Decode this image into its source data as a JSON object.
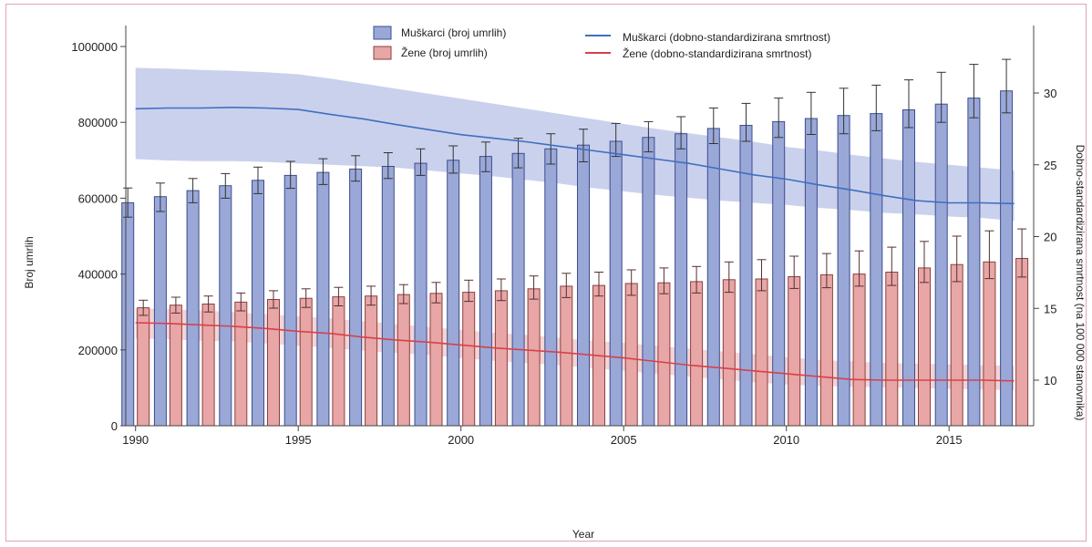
{
  "colors": {
    "men_bar": "#9aa8d8",
    "men_bar_stroke": "#3d4c8e",
    "women_bar": "#e8a6a6",
    "women_bar_stroke": "#8a4040",
    "men_line": "#3f6fbf",
    "women_line": "#d8404a",
    "men_band": "#c1c9ea",
    "women_band": "#f2cccc",
    "frame": "#e4a3b6"
  },
  "chart_data": {
    "type": "bar",
    "xlabel": "Year",
    "ylabel": "Broj umrlih",
    "y2label": "Dobno-standardizirana smrtnost (na 100 000 stanovnika)",
    "ylim": [
      0,
      1000000
    ],
    "y2lim": [
      7.7,
      33.5
    ],
    "xlim": [
      1989.7,
      2017.6
    ],
    "x_ticks": [
      1990,
      1995,
      2000,
      2005,
      2010,
      2015
    ],
    "x_tick_labels": [
      "1990",
      "1995",
      "2000",
      "2005",
      "2010",
      "2015"
    ],
    "y_ticks": [
      0,
      200000,
      400000,
      600000,
      800000,
      1000000
    ],
    "y_tick_labels": [
      "0",
      "200000",
      "400000",
      "600000",
      "800000",
      "1000000"
    ],
    "y2_ticks": [
      10,
      15,
      20,
      25,
      30
    ],
    "y2_tick_labels": [
      "10",
      "15",
      "20",
      "25",
      "30"
    ],
    "legend": {
      "placement": "top",
      "entries": [
        "Muškarci (broj umrlih)",
        "Žene (broj umrlih)",
        "Muškarci (dobno-standardizirana smrtnost)",
        "Žene (dobno-standardizirana smrtnost)"
      ]
    },
    "years": [
      1990,
      1991,
      1992,
      1993,
      1994,
      1995,
      1996,
      1997,
      1998,
      1999,
      2000,
      2001,
      2002,
      2003,
      2004,
      2005,
      2006,
      2007,
      2008,
      2009,
      2010,
      2011,
      2012,
      2013,
      2014,
      2015,
      2016,
      2017
    ],
    "series": [
      {
        "name": "Muškarci (broj umrlih)",
        "type": "bar",
        "values": [
          588000,
          604000,
          620000,
          633000,
          647000,
          660000,
          668000,
          677000,
          684000,
          692000,
          700000,
          710000,
          718000,
          730000,
          740000,
          750000,
          760000,
          770000,
          784000,
          792000,
          802000,
          810000,
          818000,
          823000,
          833000,
          848000,
          864000,
          883000
        ],
        "lower": [
          550000,
          565000,
          588000,
          600000,
          612000,
          626000,
          636000,
          645000,
          652000,
          660000,
          666000,
          670000,
          680000,
          690000,
          696000,
          710000,
          722000,
          730000,
          744000,
          750000,
          760000,
          768000,
          770000,
          778000,
          786000,
          800000,
          812000,
          825000
        ],
        "upper": [
          627000,
          640000,
          652000,
          665000,
          682000,
          697000,
          704000,
          712000,
          720000,
          730000,
          738000,
          748000,
          758000,
          770000,
          782000,
          797000,
          802000,
          815000,
          838000,
          850000,
          864000,
          879000,
          890000,
          898000,
          912000,
          932000,
          953000,
          966000
        ]
      },
      {
        "name": "Žene (broj umrlih)",
        "type": "bar",
        "values": [
          311000,
          318000,
          321000,
          326000,
          333000,
          336000,
          340000,
          342000,
          346000,
          349000,
          352000,
          356000,
          361000,
          368000,
          370000,
          375000,
          377000,
          380000,
          385000,
          387000,
          393000,
          398000,
          400000,
          405000,
          416000,
          425000,
          432000,
          441000
        ],
        "lower": [
          291000,
          297000,
          300000,
          303000,
          310000,
          312000,
          316000,
          318000,
          322000,
          324000,
          328000,
          330000,
          334000,
          338000,
          342000,
          344000,
          348000,
          350000,
          352000,
          356000,
          362000,
          364000,
          368000,
          370000,
          378000,
          380000,
          388000,
          392000
        ],
        "upper": [
          331000,
          339000,
          342000,
          350000,
          356000,
          361000,
          365000,
          368000,
          372000,
          378000,
          384000,
          387000,
          395000,
          402000,
          405000,
          411000,
          416000,
          420000,
          432000,
          438000,
          447000,
          454000,
          461000,
          471000,
          486000,
          500000,
          514000,
          519000
        ]
      },
      {
        "name": "Muškarci (dobno-standardizirana smrtnost)",
        "type": "line",
        "values": [
          28.9,
          28.95,
          28.95,
          29.0,
          28.95,
          28.85,
          28.5,
          28.2,
          27.8,
          27.45,
          27.1,
          26.85,
          26.6,
          26.3,
          26.0,
          25.7,
          25.4,
          25.1,
          24.7,
          24.3,
          24.0,
          23.6,
          23.25,
          22.85,
          22.5,
          22.35,
          22.35,
          22.3
        ],
        "lower": [
          25.4,
          25.3,
          25.25,
          25.25,
          25.2,
          25.1,
          25.0,
          24.9,
          24.8,
          24.6,
          24.4,
          24.2,
          23.95,
          23.7,
          23.4,
          23.15,
          22.9,
          22.7,
          22.5,
          22.35,
          22.2,
          22.0,
          21.85,
          21.65,
          21.55,
          21.4,
          21.3,
          21.1
        ],
        "upper": [
          31.75,
          31.7,
          31.6,
          31.55,
          31.45,
          31.3,
          31.0,
          30.65,
          30.3,
          29.95,
          29.6,
          29.25,
          28.9,
          28.55,
          28.2,
          27.85,
          27.5,
          27.2,
          26.9,
          26.6,
          26.25,
          26.0,
          25.7,
          25.45,
          25.2,
          25.0,
          24.8,
          24.6
        ]
      },
      {
        "name": "Žene (dobno-standardizirana smrtnost)",
        "type": "line",
        "values": [
          14.0,
          13.95,
          13.85,
          13.75,
          13.6,
          13.4,
          13.25,
          13.0,
          12.8,
          12.65,
          12.45,
          12.25,
          12.1,
          11.95,
          11.75,
          11.55,
          11.3,
          11.05,
          10.85,
          10.65,
          10.45,
          10.25,
          10.05,
          10.0,
          10.0,
          10.0,
          10.0,
          9.95
        ],
        "lower": [
          12.9,
          12.85,
          12.75,
          12.7,
          12.55,
          12.4,
          12.25,
          12.05,
          11.9,
          11.75,
          11.55,
          11.35,
          11.2,
          11.05,
          10.85,
          10.65,
          10.45,
          10.25,
          10.05,
          9.85,
          9.7,
          9.6,
          9.55,
          9.5,
          9.45,
          9.4,
          9.35,
          9.3
        ],
        "upper": [
          15.0,
          14.95,
          14.85,
          14.75,
          14.6,
          14.45,
          14.3,
          14.1,
          13.9,
          13.7,
          13.5,
          13.3,
          13.15,
          12.95,
          12.75,
          12.6,
          12.4,
          12.2,
          12.0,
          11.8,
          11.6,
          11.4,
          11.3,
          11.2,
          11.15,
          11.1,
          11.05,
          11.0
        ]
      }
    ]
  }
}
